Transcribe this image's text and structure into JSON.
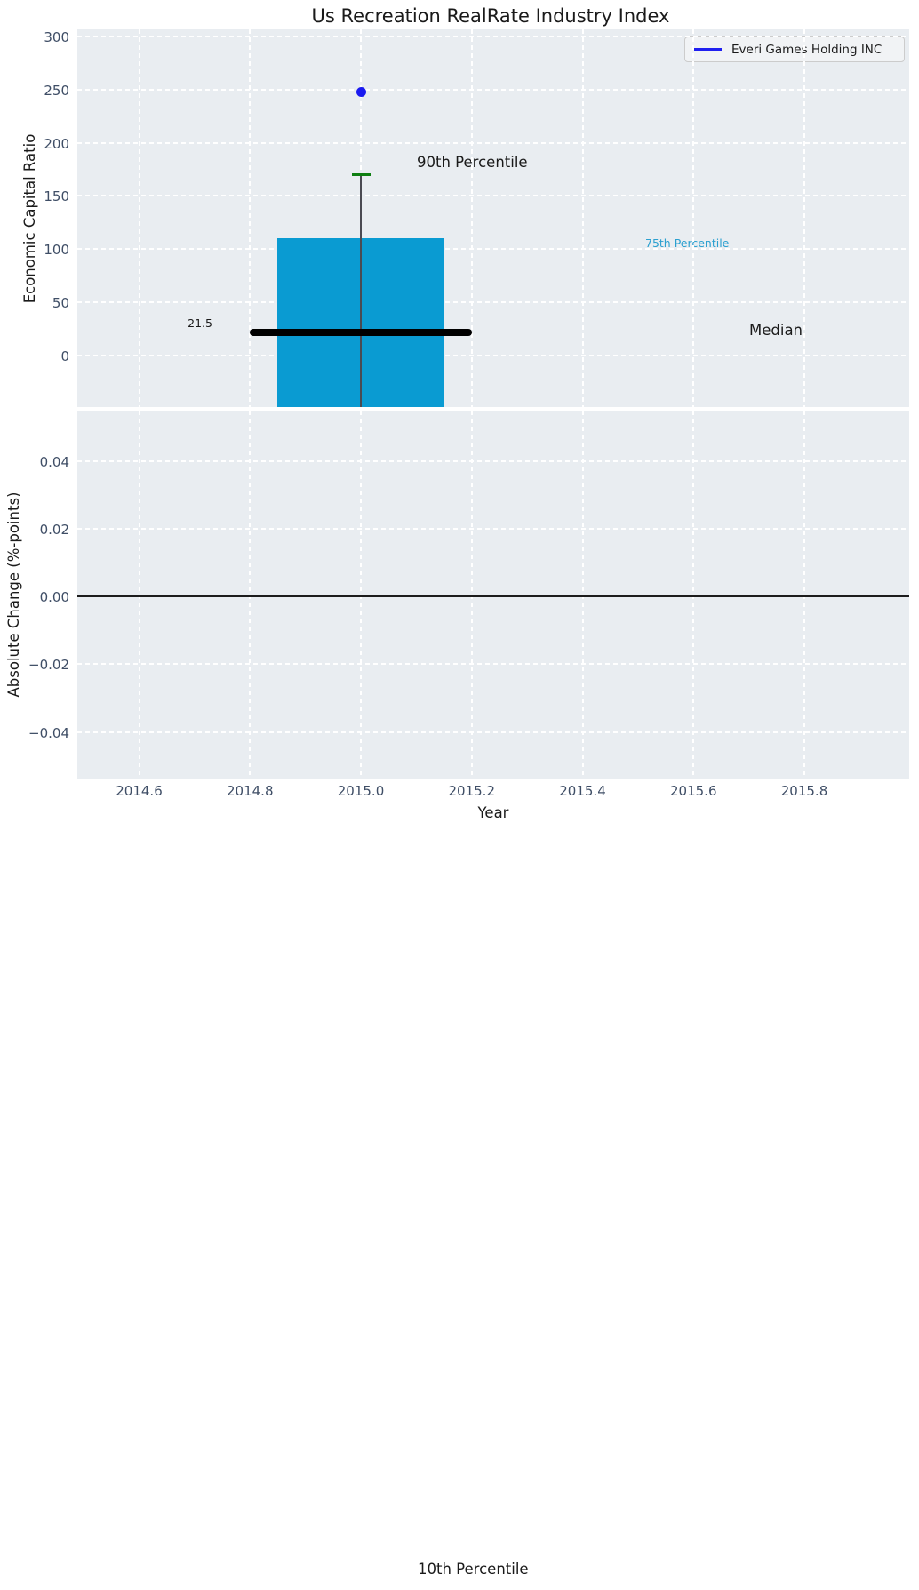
{
  "title": "Us Recreation RealRate Industry Index",
  "legend": {
    "label": "Everi Games Holding INC",
    "line_color": "#2020f0"
  },
  "colors": {
    "figure_bg": "#ffffff",
    "axes_bg": "#e9edf1",
    "grid": "#ffffff",
    "box_fill": "#0a9bd2",
    "whisker": "#4a4a52",
    "cap_90th": "#0e7f12",
    "median_line": "#000000",
    "scatter_point": "#1a1af0",
    "tick_text": "#3f4e66",
    "annotation_75th": "#2ba0d0",
    "zero_line": "#1c1c1c"
  },
  "chart_data": {
    "type": "box",
    "title": "Us Recreation RealRate Industry Index",
    "xlabel": "Year",
    "x_tick_labels": [
      "2014.6",
      "2014.8",
      "2015.0",
      "2015.2",
      "2015.4",
      "2015.6",
      "2015.8"
    ],
    "x_ticks": [
      2014.6,
      2014.8,
      2015.0,
      2015.2,
      2015.4,
      2015.6,
      2015.8
    ],
    "xlim": [
      2014.485,
      2015.99
    ],
    "grid": "white dashed on light gray background",
    "legend_position": "upper right",
    "subplots": [
      {
        "ylabel": "Economic Capital Ratio",
        "y_tick_labels": [
          "300",
          "250",
          "200",
          "150",
          "100",
          "50",
          "0"
        ],
        "y_ticks": [
          300,
          250,
          200,
          150,
          100,
          50,
          0
        ],
        "ylim": [
          -48.5,
          306.5
        ],
        "box": {
          "x_center": 2015.0,
          "box_x_range": [
            2014.85,
            2015.15
          ],
          "p75_top": 110,
          "median": 21.5,
          "median_line_x_range": [
            2014.8,
            2015.2
          ],
          "p90_cap": 170,
          "box_bottom": "clipped below axis bottom (~-48)",
          "p10": "off-axis; label rendered near page bottom"
        },
        "points": [
          {
            "series": "Everi Games Holding INC",
            "x": 2015.0,
            "y": 248
          }
        ],
        "annotations": [
          {
            "text": "90th Percentile",
            "anchor_value": 170,
            "style": "large-black"
          },
          {
            "text": "75th Percentile",
            "anchor_value": 101,
            "style": "small-cyan"
          },
          {
            "text": "Median",
            "anchor_value": 21.5,
            "style": "large-black"
          },
          {
            "text": "21.5",
            "anchor_value": 21.5,
            "style": "small-black-left-of-median"
          },
          {
            "text": "10th Percentile",
            "anchor_value": "far below axis",
            "style": "large-black-page-bottom"
          }
        ]
      },
      {
        "ylabel": "Absolute Change (%-points)",
        "y_tick_labels": [
          "0.04",
          "0.02",
          "0.00",
          "−0.02",
          "−0.04"
        ],
        "y_ticks": [
          0.04,
          0.02,
          0.0,
          -0.02,
          -0.04
        ],
        "ylim": [
          -0.054,
          0.055
        ],
        "zero_line": 0.0,
        "series": []
      }
    ]
  },
  "labels": {
    "p90": "90th Percentile",
    "p75": "75th Percentile",
    "median": "Median",
    "median_value": "21.5",
    "p10": "10th Percentile",
    "xlabel": "Year",
    "ylabel_top": "Economic Capital Ratio",
    "ylabel_bottom": "Absolute Change (%-points)"
  }
}
